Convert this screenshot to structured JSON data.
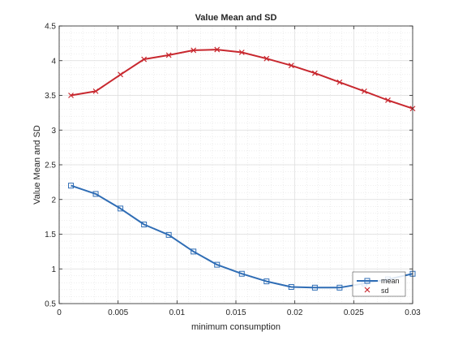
{
  "colors": {
    "mean": "#2f6db5",
    "sd": "#c8282f",
    "axis": "#262626",
    "grid": "#dcdcdc"
  },
  "chart_data": {
    "type": "line",
    "title": "Value Mean and SD",
    "xlabel": "minimum consumption",
    "ylabel": "Value Mean and SD",
    "xlim": [
      0,
      0.03
    ],
    "ylim": [
      0.5,
      4.5
    ],
    "grid": true,
    "minor_grid": true,
    "legend_position": "bottom-right",
    "x_ticks": [
      0,
      0.005,
      0.01,
      0.015,
      0.02,
      0.025,
      0.03
    ],
    "x_tick_labels": [
      "0",
      "0.005",
      "0.01",
      "0.015",
      "0.02",
      "0.025",
      "0.03"
    ],
    "y_ticks": [
      0.5,
      1,
      1.5,
      2,
      2.5,
      3,
      3.5,
      4,
      4.5
    ],
    "y_tick_labels": [
      "0.5",
      "1",
      "1.5",
      "2",
      "2.5",
      "3",
      "3.5",
      "4",
      "4.5"
    ],
    "x": [
      0.001,
      0.0031,
      0.0052,
      0.0072,
      0.0093,
      0.0114,
      0.0134,
      0.0155,
      0.0176,
      0.0197,
      0.0217,
      0.0238,
      0.0259,
      0.0279,
      0.03
    ],
    "series": [
      {
        "name": "mean",
        "marker": "square",
        "values": [
          2.2,
          2.08,
          1.87,
          1.64,
          1.49,
          1.25,
          1.06,
          0.93,
          0.82,
          0.74,
          0.73,
          0.73,
          0.79,
          0.85,
          0.93
        ]
      },
      {
        "name": "sd",
        "marker": "x",
        "values": [
          3.5,
          3.56,
          3.8,
          4.02,
          4.08,
          4.15,
          4.16,
          4.12,
          4.03,
          3.93,
          3.82,
          3.69,
          3.56,
          3.43,
          3.31
        ]
      }
    ]
  }
}
